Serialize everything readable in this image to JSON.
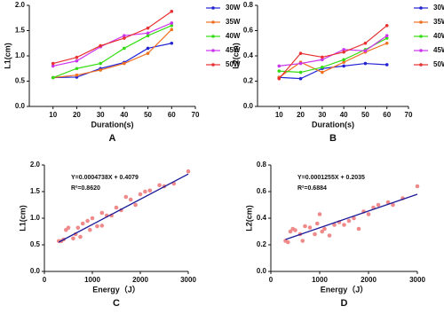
{
  "chart_data": [
    {
      "type": "line",
      "label": "A",
      "xlabel": "Duration(s)",
      "ylabel": "L1(cm)",
      "x": [
        10,
        20,
        30,
        40,
        50,
        60
      ],
      "xlim": [
        0,
        70
      ],
      "xticks": [
        10,
        20,
        30,
        40,
        50,
        60,
        70
      ],
      "ylim": [
        0,
        2
      ],
      "yticks": [
        {
          "value": 0,
          "label": "0.0"
        },
        0.5,
        {
          "value": 1,
          "label": "1.0"
        },
        1.5,
        {
          "value": 2,
          "label": "2.0"
        }
      ],
      "legend": "right",
      "series": [
        {
          "name": "30W",
          "color": "#2323d6",
          "values": [
            0.57,
            0.58,
            0.75,
            0.87,
            1.15,
            1.25
          ]
        },
        {
          "name": "35W",
          "color": "#f07020",
          "values": [
            0.57,
            0.62,
            0.72,
            0.85,
            1.05,
            1.52
          ]
        },
        {
          "name": "40W",
          "color": "#33dd11",
          "values": [
            0.57,
            0.75,
            0.85,
            1.15,
            1.4,
            1.6
          ]
        },
        {
          "name": "45W",
          "color": "#cc33ee",
          "values": [
            0.8,
            0.9,
            1.18,
            1.4,
            1.45,
            1.65
          ]
        },
        {
          "name": "50W",
          "color": "#e83030",
          "values": [
            0.85,
            0.97,
            1.2,
            1.35,
            1.55,
            1.88
          ]
        }
      ]
    },
    {
      "type": "line",
      "label": "B",
      "xlabel": "Duration(s)",
      "ylabel": "L2(cm)",
      "x": [
        10,
        20,
        30,
        40,
        50,
        60
      ],
      "xlim": [
        0,
        70
      ],
      "xticks": [
        10,
        20,
        30,
        40,
        50,
        60,
        70
      ],
      "ylim": [
        0,
        0.8
      ],
      "yticks": [
        {
          "value": 0,
          "label": "0.0"
        },
        0.2,
        0.4,
        0.6,
        0.8
      ],
      "legend": "right",
      "series": [
        {
          "name": "30W",
          "color": "#2323d6",
          "values": [
            0.23,
            0.22,
            0.3,
            0.32,
            0.34,
            0.33
          ]
        },
        {
          "name": "35W",
          "color": "#f07020",
          "values": [
            0.23,
            0.35,
            0.27,
            0.35,
            0.43,
            0.5
          ]
        },
        {
          "name": "40W",
          "color": "#33dd11",
          "values": [
            0.28,
            0.27,
            0.31,
            0.37,
            0.45,
            0.54
          ]
        },
        {
          "name": "45W",
          "color": "#cc33ee",
          "values": [
            0.32,
            0.34,
            0.37,
            0.45,
            0.44,
            0.56
          ]
        },
        {
          "name": "50W",
          "color": "#e83030",
          "values": [
            0.22,
            0.42,
            0.39,
            0.43,
            0.5,
            0.64
          ]
        }
      ]
    },
    {
      "type": "scatter",
      "label": "C",
      "xlabel": "Energy（J）",
      "ylabel": "L1(cm)",
      "annotations": [
        "Y=0.0004738X + 0.4079",
        "R²=0.8620"
      ],
      "color": "#f08a8a",
      "fit_color": "#1a1a99",
      "xlim": [
        0,
        3000
      ],
      "xticks": [
        0,
        1000,
        2000,
        3000
      ],
      "ylim": [
        0,
        2
      ],
      "yticks": [
        {
          "value": 0,
          "label": "0.0"
        },
        0.5,
        {
          "value": 1,
          "label": "1.0"
        },
        1.5,
        {
          "value": 2,
          "label": "2.0"
        }
      ],
      "x": [
        300,
        350,
        400,
        450,
        500,
        600,
        650,
        700,
        750,
        800,
        900,
        950,
        1000,
        1100,
        1200,
        1200,
        1300,
        1400,
        1500,
        1600,
        1700,
        1800,
        1900,
        2000,
        2100,
        2200,
        2400,
        2500,
        2700,
        3000
      ],
      "values": [
        0.57,
        0.57,
        0.6,
        0.78,
        0.82,
        0.62,
        0.7,
        0.82,
        0.65,
        0.9,
        0.95,
        0.78,
        1.0,
        0.85,
        0.86,
        1.1,
        1.05,
        1.05,
        1.2,
        1.15,
        1.4,
        1.35,
        1.25,
        1.45,
        1.5,
        1.52,
        1.62,
        1.6,
        1.65,
        1.88
      ],
      "fit": {
        "x": [
          300,
          3000
        ],
        "y": [
          0.55,
          1.83
        ]
      }
    },
    {
      "type": "scatter",
      "label": "D",
      "xlabel": "Energy（J）",
      "ylabel": "L2(cm)",
      "annotations": [
        "Y=0.0001255X + 0.2035",
        "R²=0.6884"
      ],
      "color": "#f08a8a",
      "fit_color": "#1a1a99",
      "xlim": [
        0,
        3000
      ],
      "xticks": [
        0,
        1000,
        2000,
        3000
      ],
      "ylim": [
        0,
        0.8
      ],
      "yticks": [
        {
          "value": 0,
          "label": "0.0"
        },
        0.2,
        0.4,
        0.6,
        0.8
      ],
      "x": [
        300,
        350,
        400,
        450,
        500,
        600,
        650,
        700,
        800,
        900,
        950,
        1000,
        1050,
        1100,
        1200,
        1300,
        1400,
        1500,
        1600,
        1700,
        1800,
        1900,
        2000,
        2100,
        2200,
        2400,
        2500,
        2700,
        3000
      ],
      "values": [
        0.23,
        0.22,
        0.3,
        0.32,
        0.31,
        0.28,
        0.23,
        0.34,
        0.33,
        0.28,
        0.36,
        0.43,
        0.3,
        0.32,
        0.27,
        0.35,
        0.37,
        0.35,
        0.38,
        0.4,
        0.32,
        0.45,
        0.43,
        0.48,
        0.5,
        0.52,
        0.5,
        0.55,
        0.64
      ],
      "fit": {
        "x": [
          300,
          3000
        ],
        "y": [
          0.24,
          0.58
        ]
      }
    }
  ]
}
